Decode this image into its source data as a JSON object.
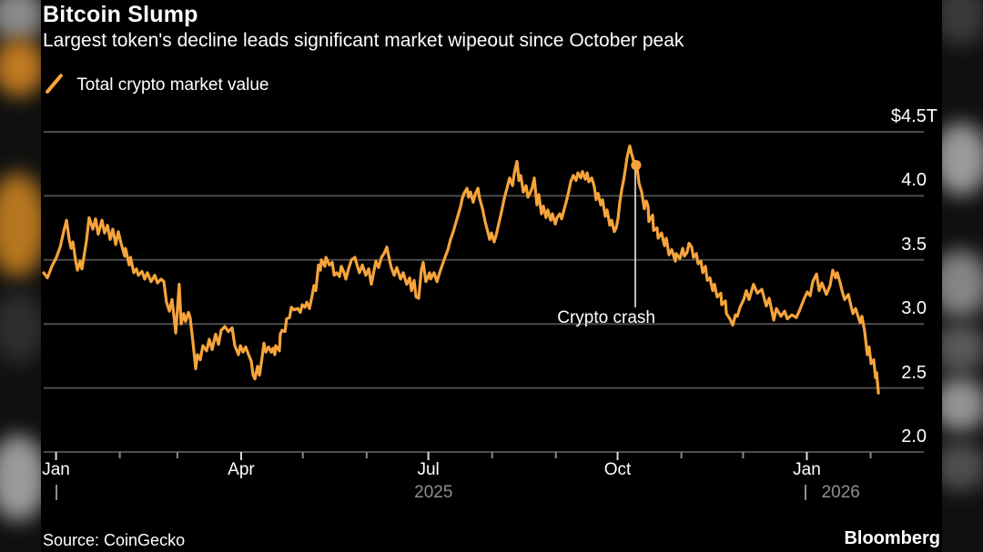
{
  "header": {
    "title": "Bitcoin Slump",
    "subtitle": "Largest token's decline leads significant market wipeout since October peak"
  },
  "legend": {
    "label": "Total crypto market value"
  },
  "footer": {
    "source": "Source: CoinGecko",
    "brand": "Bloomberg"
  },
  "colors": {
    "line": "#F6A43B",
    "grid": "#4d4d4d",
    "background": "#000000",
    "text": "#ffffff",
    "muted": "#8f8f8f",
    "annotation_line": "#ededed",
    "tick_major": "#dddddd",
    "tick_minor": "#8a8a8a"
  },
  "chart_data": {
    "type": "line",
    "title": "Bitcoin Slump",
    "series_name": "Total crypto market value",
    "unit": "$T",
    "start_date": "2024-12-26",
    "x_range_days": 428,
    "ylim": [
      2.0,
      4.5
    ],
    "grid": true,
    "legend_position": "top-left",
    "y_ticks": [
      {
        "value": 4.5,
        "label": "$4.5T"
      },
      {
        "value": 4.0,
        "label": "4.0"
      },
      {
        "value": 3.5,
        "label": "3.5"
      },
      {
        "value": 3.0,
        "label": "3.0"
      },
      {
        "value": 2.5,
        "label": "2.5"
      },
      {
        "value": 2.0,
        "label": "2.0"
      }
    ],
    "x_ticks": [
      {
        "day": 6,
        "label": "Jan"
      },
      {
        "day": 37
      },
      {
        "day": 65
      },
      {
        "day": 96,
        "label": "Apr"
      },
      {
        "day": 126
      },
      {
        "day": 157
      },
      {
        "day": 187,
        "label": "Jul"
      },
      {
        "day": 218
      },
      {
        "day": 249
      },
      {
        "day": 279,
        "label": "Oct"
      },
      {
        "day": 310
      },
      {
        "day": 340
      },
      {
        "day": 371,
        "label": "Jan"
      },
      {
        "day": 402
      }
    ],
    "years": [
      {
        "label": "2025",
        "tick_day": 6.2,
        "label_center_day": 189.5
      },
      {
        "label": "2026",
        "tick_day": 370.5,
        "label_center_day": 387.5
      }
    ],
    "annotation": {
      "label": "Crypto crash",
      "day": 287.6,
      "line_top_value": 4.23,
      "line_bottom_value": 3.13,
      "label_center_day": 273.5,
      "marker_day": 288,
      "marker_value": 4.24
    },
    "points": [
      [
        0,
        3.4
      ],
      [
        1.8,
        3.36
      ],
      [
        4,
        3.45
      ],
      [
        6.2,
        3.52
      ],
      [
        8,
        3.6
      ],
      [
        9.7,
        3.72
      ],
      [
        11.1,
        3.81
      ],
      [
        12.4,
        3.66
      ],
      [
        13.3,
        3.59
      ],
      [
        14.2,
        3.64
      ],
      [
        15.5,
        3.5
      ],
      [
        16.4,
        3.42
      ],
      [
        17.7,
        3.49
      ],
      [
        18.6,
        3.43
      ],
      [
        19.9,
        3.56
      ],
      [
        20.8,
        3.65
      ],
      [
        22.1,
        3.83
      ],
      [
        23.9,
        3.74
      ],
      [
        25.2,
        3.82
      ],
      [
        26.5,
        3.7
      ],
      [
        28.3,
        3.81
      ],
      [
        29.6,
        3.71
      ],
      [
        31,
        3.77
      ],
      [
        32.3,
        3.66
      ],
      [
        33.6,
        3.74
      ],
      [
        35,
        3.62
      ],
      [
        36.3,
        3.72
      ],
      [
        37.6,
        3.63
      ],
      [
        39.4,
        3.53
      ],
      [
        39.8,
        3.59
      ],
      [
        41.6,
        3.46
      ],
      [
        42.2,
        3.52
      ],
      [
        43.8,
        3.4
      ],
      [
        45.1,
        3.43
      ],
      [
        46,
        3.38
      ],
      [
        47.8,
        3.41
      ],
      [
        49.1,
        3.35
      ],
      [
        50.4,
        3.4
      ],
      [
        52.2,
        3.33
      ],
      [
        54,
        3.38
      ],
      [
        55.3,
        3.32
      ],
      [
        57.1,
        3.35
      ],
      [
        58.4,
        3.33
      ],
      [
        59.7,
        3.17
      ],
      [
        61.1,
        3.1
      ],
      [
        62.4,
        3.19
      ],
      [
        64.2,
        2.93
      ],
      [
        65.9,
        3.31
      ],
      [
        66.8,
        3.0
      ],
      [
        68.1,
        3.08
      ],
      [
        69,
        3.02
      ],
      [
        70.4,
        3.09
      ],
      [
        71.2,
        3.05
      ],
      [
        72.6,
        2.85
      ],
      [
        73.9,
        2.65
      ],
      [
        74.8,
        2.76
      ],
      [
        76.1,
        2.72
      ],
      [
        77.4,
        2.83
      ],
      [
        79.2,
        2.79
      ],
      [
        80.5,
        2.88
      ],
      [
        81.9,
        2.8
      ],
      [
        83.6,
        2.92
      ],
      [
        85,
        2.84
      ],
      [
        86.3,
        2.95
      ],
      [
        88.1,
        2.98
      ],
      [
        89.8,
        2.94
      ],
      [
        91.6,
        2.97
      ],
      [
        92.9,
        2.83
      ],
      [
        94.7,
        2.76
      ],
      [
        95.6,
        2.83
      ],
      [
        96.9,
        2.78
      ],
      [
        98.2,
        2.82
      ],
      [
        99.6,
        2.76
      ],
      [
        100.9,
        2.71
      ],
      [
        101.8,
        2.6
      ],
      [
        102.7,
        2.57
      ],
      [
        104,
        2.67
      ],
      [
        104.9,
        2.6
      ],
      [
        106.2,
        2.74
      ],
      [
        107.1,
        2.85
      ],
      [
        108,
        2.78
      ],
      [
        109.3,
        2.82
      ],
      [
        110.6,
        2.78
      ],
      [
        111.5,
        2.81
      ],
      [
        112.4,
        2.76
      ],
      [
        112.8,
        2.83
      ],
      [
        114.6,
        2.79
      ],
      [
        115,
        2.92
      ],
      [
        115.9,
        2.95
      ],
      [
        117.3,
        2.94
      ],
      [
        118.1,
        3.04
      ],
      [
        119.5,
        3.05
      ],
      [
        120.4,
        3.13
      ],
      [
        121.7,
        3.11
      ],
      [
        123.5,
        3.12
      ],
      [
        124.8,
        3.09
      ],
      [
        125.7,
        3.15
      ],
      [
        127,
        3.13
      ],
      [
        127.9,
        3.17
      ],
      [
        129.2,
        3.12
      ],
      [
        130.5,
        3.22
      ],
      [
        131.4,
        3.3
      ],
      [
        132.3,
        3.26
      ],
      [
        133.6,
        3.46
      ],
      [
        134.5,
        3.42
      ],
      [
        135,
        3.5
      ],
      [
        136.7,
        3.45
      ],
      [
        137.2,
        3.52
      ],
      [
        138.9,
        3.46
      ],
      [
        140.3,
        3.48
      ],
      [
        141.2,
        3.38
      ],
      [
        142.5,
        3.4
      ],
      [
        143.8,
        3.37
      ],
      [
        144.7,
        3.45
      ],
      [
        146,
        3.4
      ],
      [
        146.9,
        3.35
      ],
      [
        148.2,
        3.43
      ],
      [
        149.6,
        3.5
      ],
      [
        151.3,
        3.52
      ],
      [
        152.7,
        3.44
      ],
      [
        153.5,
        3.4
      ],
      [
        154.9,
        3.46
      ],
      [
        156.6,
        3.38
      ],
      [
        158,
        3.43
      ],
      [
        159.3,
        3.31
      ],
      [
        160.6,
        3.42
      ],
      [
        161.5,
        3.49
      ],
      [
        162.8,
        3.44
      ],
      [
        164.2,
        3.52
      ],
      [
        165.5,
        3.55
      ],
      [
        166.8,
        3.6
      ],
      [
        168.1,
        3.5
      ],
      [
        169,
        3.44
      ],
      [
        170.4,
        3.38
      ],
      [
        171.7,
        3.44
      ],
      [
        173.5,
        3.35
      ],
      [
        174.8,
        3.4
      ],
      [
        176.5,
        3.31
      ],
      [
        177.9,
        3.36
      ],
      [
        178.8,
        3.26
      ],
      [
        180.1,
        3.34
      ],
      [
        181,
        3.21
      ],
      [
        182.3,
        3.2
      ],
      [
        183.6,
        3.42
      ],
      [
        184.5,
        3.48
      ],
      [
        185.8,
        3.33
      ],
      [
        187.6,
        3.4
      ],
      [
        188.1,
        3.35
      ],
      [
        189.8,
        3.4
      ],
      [
        191.2,
        3.33
      ],
      [
        192.5,
        3.4
      ],
      [
        193.8,
        3.46
      ],
      [
        195.1,
        3.52
      ],
      [
        196.5,
        3.58
      ],
      [
        197.8,
        3.66
      ],
      [
        199.1,
        3.72
      ],
      [
        200,
        3.77
      ],
      [
        201.3,
        3.84
      ],
      [
        202.7,
        3.92
      ],
      [
        203.5,
        3.98
      ],
      [
        204.4,
        4.02
      ],
      [
        205.8,
        4.06
      ],
      [
        206.6,
        3.99
      ],
      [
        207.5,
        4.03
      ],
      [
        208.8,
        3.95
      ],
      [
        209.7,
        4.01
      ],
      [
        211.1,
        4.06
      ],
      [
        211.9,
        3.98
      ],
      [
        213.3,
        3.9
      ],
      [
        214.6,
        3.8
      ],
      [
        215.9,
        3.72
      ],
      [
        216.8,
        3.66
      ],
      [
        217.7,
        3.71
      ],
      [
        219,
        3.64
      ],
      [
        219.9,
        3.69
      ],
      [
        221.2,
        3.78
      ],
      [
        222.6,
        3.88
      ],
      [
        223.9,
        3.98
      ],
      [
        225.2,
        4.06
      ],
      [
        226.5,
        4.14
      ],
      [
        227.9,
        4.08
      ],
      [
        228.8,
        4.18
      ],
      [
        230.1,
        4.27
      ],
      [
        231,
        4.12
      ],
      [
        231.9,
        4.16
      ],
      [
        233.2,
        4.03
      ],
      [
        234.5,
        4.08
      ],
      [
        235.4,
        3.99
      ],
      [
        236.7,
        4.03
      ],
      [
        237.6,
        4.07
      ],
      [
        238.5,
        4.14
      ],
      [
        239.8,
        3.93
      ],
      [
        240.7,
        4.01
      ],
      [
        242,
        3.86
      ],
      [
        242.9,
        3.92
      ],
      [
        244.2,
        3.83
      ],
      [
        245.1,
        3.89
      ],
      [
        246.5,
        3.81
      ],
      [
        247.3,
        3.86
      ],
      [
        248.7,
        3.78
      ],
      [
        249.6,
        3.83
      ],
      [
        250.9,
        3.86
      ],
      [
        251.8,
        3.82
      ],
      [
        253.1,
        3.9
      ],
      [
        254,
        3.95
      ],
      [
        255.3,
        4.04
      ],
      [
        256.2,
        4.11
      ],
      [
        257.5,
        4.16
      ],
      [
        258.8,
        4.12
      ],
      [
        259.7,
        4.18
      ],
      [
        261.1,
        4.14
      ],
      [
        261.9,
        4.19
      ],
      [
        263.3,
        4.13
      ],
      [
        264.2,
        4.18
      ],
      [
        265,
        4.11
      ],
      [
        266.4,
        4.14
      ],
      [
        267.7,
        4.07
      ],
      [
        268.6,
        3.97
      ],
      [
        269.5,
        4.02
      ],
      [
        270.8,
        3.93
      ],
      [
        271.7,
        3.97
      ],
      [
        273,
        3.84
      ],
      [
        273.9,
        3.89
      ],
      [
        275.2,
        3.77
      ],
      [
        276.1,
        3.81
      ],
      [
        277.4,
        3.72
      ],
      [
        278.3,
        3.75
      ],
      [
        279.2,
        3.82
      ],
      [
        280.1,
        3.95
      ],
      [
        281,
        4.05
      ],
      [
        281.9,
        4.12
      ],
      [
        282.7,
        4.2
      ],
      [
        283.6,
        4.3
      ],
      [
        284.9,
        4.39
      ],
      [
        285.8,
        4.33
      ],
      [
        286.7,
        4.28
      ],
      [
        287.6,
        4.25
      ],
      [
        288.5,
        4.22
      ],
      [
        289.4,
        4.1
      ],
      [
        290.7,
        4.03
      ],
      [
        292,
        3.9
      ],
      [
        292.9,
        3.96
      ],
      [
        293.8,
        3.92
      ],
      [
        294.2,
        3.8
      ],
      [
        296,
        3.85
      ],
      [
        296.5,
        3.73
      ],
      [
        298.2,
        3.75
      ],
      [
        298.7,
        3.67
      ],
      [
        300.4,
        3.71
      ],
      [
        301.8,
        3.61
      ],
      [
        302.7,
        3.67
      ],
      [
        304,
        3.54
      ],
      [
        305.3,
        3.58
      ],
      [
        307.1,
        3.49
      ],
      [
        307.5,
        3.55
      ],
      [
        309.3,
        3.51
      ],
      [
        310.6,
        3.59
      ],
      [
        311.5,
        3.53
      ],
      [
        312.8,
        3.56
      ],
      [
        313.7,
        3.63
      ],
      [
        315,
        3.6
      ],
      [
        315.9,
        3.52
      ],
      [
        317.3,
        3.55
      ],
      [
        318.1,
        3.47
      ],
      [
        319.5,
        3.49
      ],
      [
        320.4,
        3.4
      ],
      [
        321.7,
        3.45
      ],
      [
        322.6,
        3.34
      ],
      [
        323.9,
        3.36
      ],
      [
        325.2,
        3.26
      ],
      [
        326.1,
        3.31
      ],
      [
        327.4,
        3.21
      ],
      [
        329.2,
        3.24
      ],
      [
        329.6,
        3.15
      ],
      [
        331.4,
        3.18
      ],
      [
        331.9,
        3.08
      ],
      [
        333.6,
        3.04
      ],
      [
        335,
        2.99
      ],
      [
        336.3,
        3.07
      ],
      [
        337.2,
        3.06
      ],
      [
        338.5,
        3.13
      ],
      [
        340.3,
        3.19
      ],
      [
        341.6,
        3.26
      ],
      [
        342.9,
        3.19
      ],
      [
        345.1,
        3.31
      ],
      [
        346.9,
        3.24
      ],
      [
        349.1,
        3.27
      ],
      [
        351.3,
        3.14
      ],
      [
        352.7,
        3.2
      ],
      [
        354.9,
        3.03
      ],
      [
        356.2,
        3.12
      ],
      [
        358.4,
        3.06
      ],
      [
        360.2,
        3.1
      ],
      [
        361.5,
        3.04
      ],
      [
        363.7,
        3.07
      ],
      [
        365.9,
        3.05
      ],
      [
        367.3,
        3.1
      ],
      [
        369.5,
        3.19
      ],
      [
        371.2,
        3.25
      ],
      [
        372.6,
        3.22
      ],
      [
        373.9,
        3.33
      ],
      [
        375.7,
        3.39
      ],
      [
        377,
        3.26
      ],
      [
        378.3,
        3.32
      ],
      [
        380.5,
        3.23
      ],
      [
        382.3,
        3.3
      ],
      [
        383.6,
        3.42
      ],
      [
        385,
        3.36
      ],
      [
        385.8,
        3.4
      ],
      [
        387.2,
        3.32
      ],
      [
        388.1,
        3.26
      ],
      [
        389.4,
        3.19
      ],
      [
        391.2,
        3.23
      ],
      [
        392.5,
        3.14
      ],
      [
        393.4,
        3.08
      ],
      [
        394.7,
        3.12
      ],
      [
        396.9,
        3.01
      ],
      [
        397.8,
        3.06
      ],
      [
        399.1,
        2.94
      ],
      [
        400.4,
        2.76
      ],
      [
        401.3,
        2.82
      ],
      [
        402.2,
        2.69
      ],
      [
        403.5,
        2.72
      ],
      [
        404.4,
        2.58
      ],
      [
        404.9,
        2.62
      ],
      [
        405.8,
        2.46
      ]
    ]
  }
}
